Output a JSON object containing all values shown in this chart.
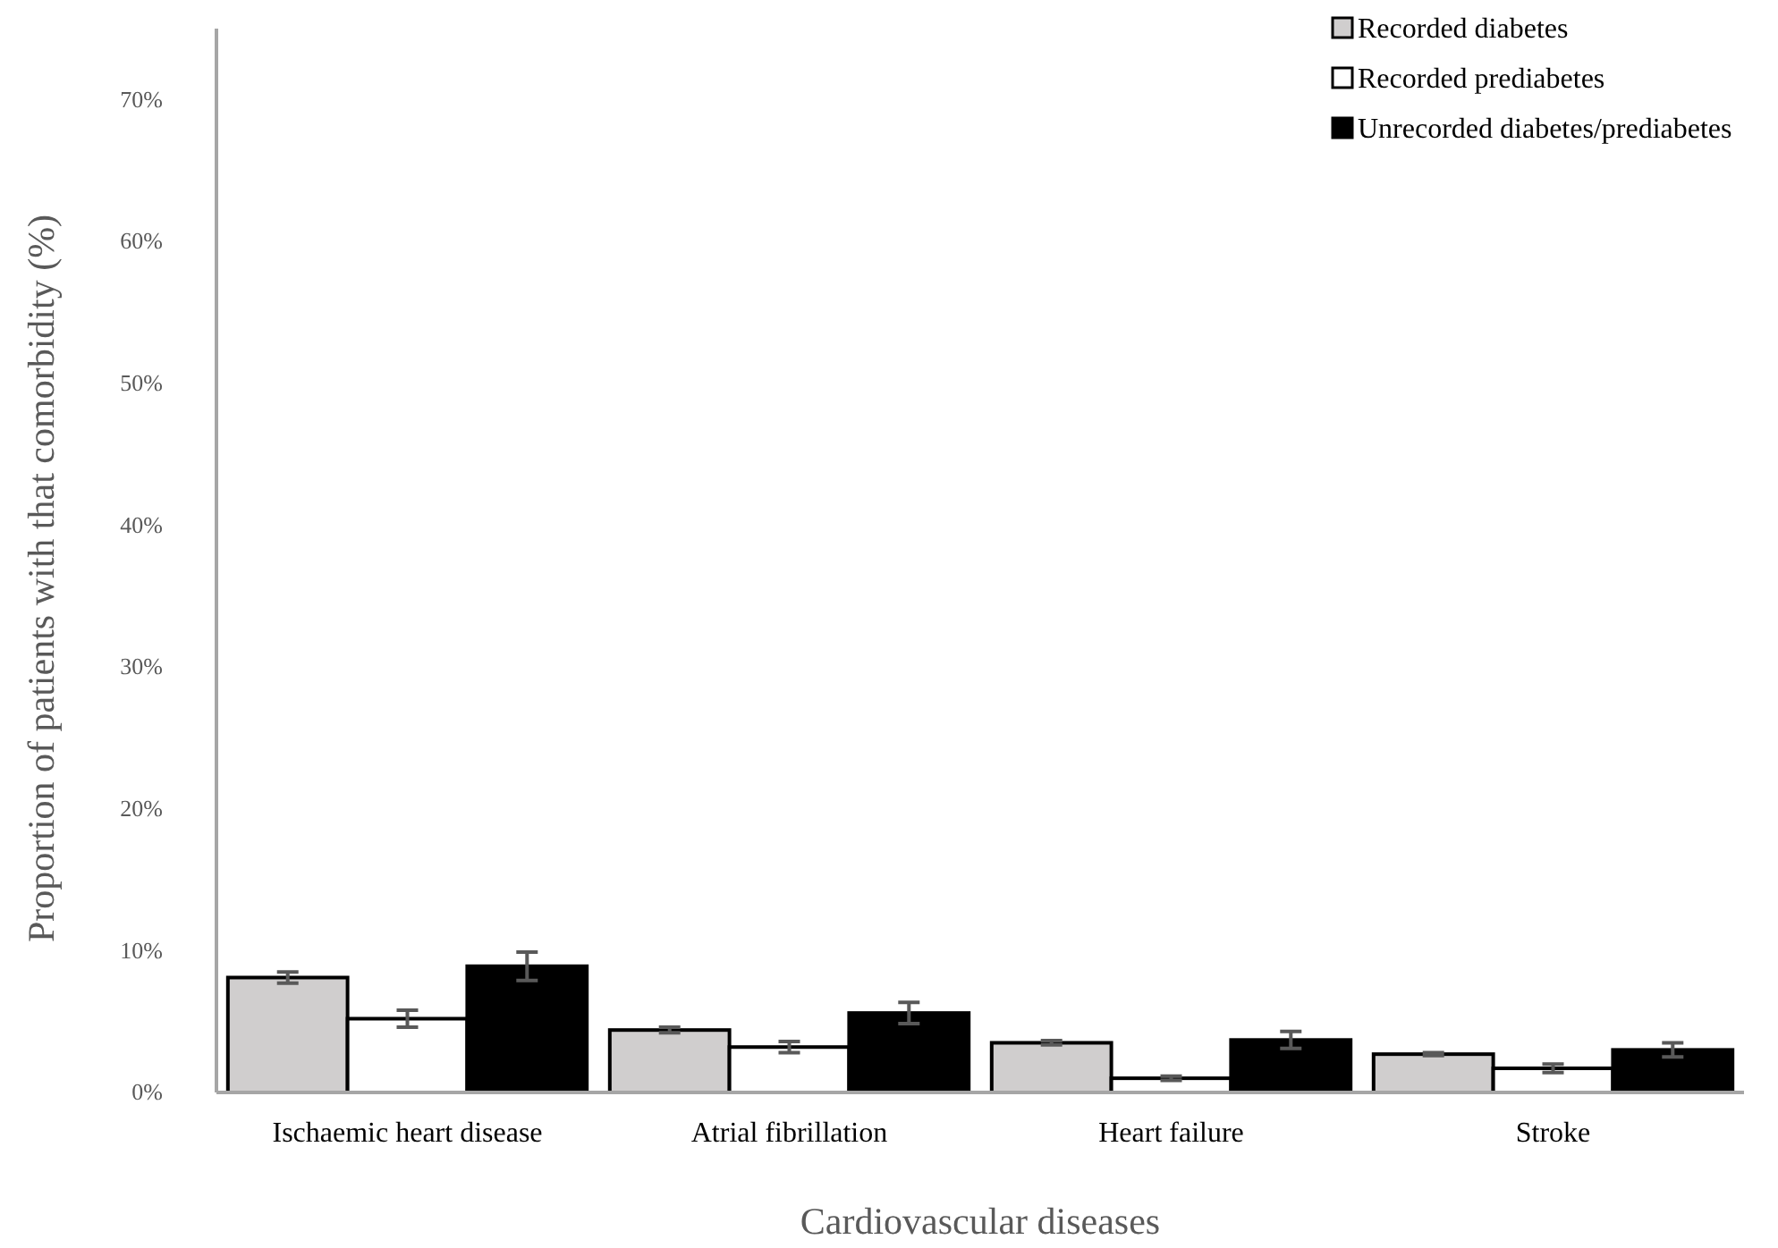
{
  "chart_data": {
    "type": "bar",
    "xlabel": "Cardiovascular diseases",
    "ylabel": "Proportion of patients with that comorbidity (%)",
    "categories": [
      "Ischaemic heart disease",
      "Atrial fibrillation",
      "Heart failure",
      "Stroke"
    ],
    "series": [
      {
        "name": "Recorded diabetes",
        "color": "#d0cece",
        "values": [
          8.1,
          4.4,
          3.5,
          2.7
        ],
        "errors": [
          0.4,
          0.2,
          0.15,
          0.1
        ]
      },
      {
        "name": "Recorded prediabetes",
        "color": "#ffffff",
        "values": [
          5.2,
          3.2,
          1.0,
          1.7
        ],
        "errors": [
          0.6,
          0.4,
          0.15,
          0.3
        ]
      },
      {
        "name": "Unrecorded diabetes/prediabetes",
        "color": "#000000",
        "values": [
          8.9,
          5.6,
          3.7,
          3.0
        ],
        "errors": [
          1.0,
          0.75,
          0.6,
          0.5
        ]
      }
    ],
    "ylim": [
      0,
      75
    ],
    "yticks": [
      {
        "value": 0,
        "label": "0%"
      },
      {
        "value": 10,
        "label": "10%"
      },
      {
        "value": 20,
        "label": "20%"
      },
      {
        "value": 30,
        "label": "30%"
      },
      {
        "value": 40,
        "label": "40%"
      },
      {
        "value": 50,
        "label": "50%"
      },
      {
        "value": 60,
        "label": "60%"
      },
      {
        "value": 70,
        "label": "70%"
      }
    ],
    "grid": false,
    "legend": "top right"
  }
}
